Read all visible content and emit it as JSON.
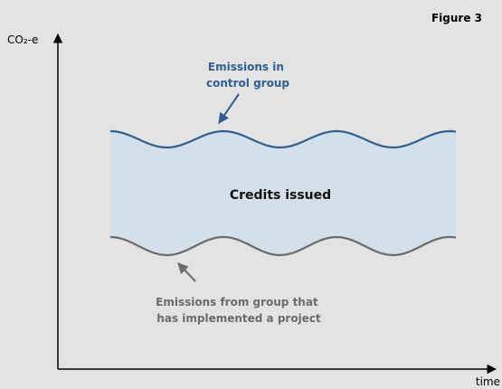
{
  "figure_label": "Figure 3",
  "y_axis_label": "CO₂-e",
  "x_axis_label": "time",
  "area_label": "Credits issued",
  "upper_curve_label": {
    "lines": [
      "Emissions in",
      "control group"
    ]
  },
  "lower_curve_label": {
    "lines": [
      "Emissions from group that",
      "has implemented a project"
    ]
  }
}
